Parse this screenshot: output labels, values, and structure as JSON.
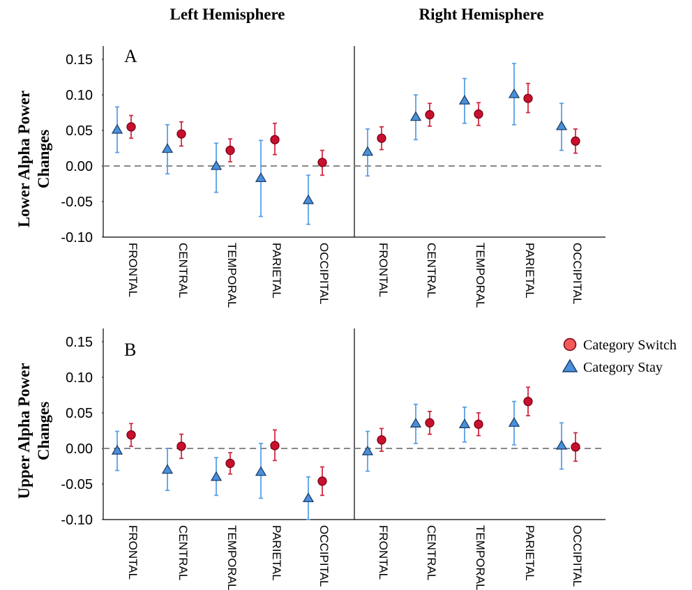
{
  "headers": {
    "left": "Left Hemisphere",
    "right": "Right Hemisphere"
  },
  "colors": {
    "switch_fill": "#c8102e",
    "switch_stroke": "#7a0014",
    "switch_error": "#d12a43",
    "stay_fill": "#4a90d9",
    "stay_stroke": "#1c3f6e",
    "stay_error": "#5aa0e6",
    "zero_line": "#888888"
  },
  "chart_data": [
    {
      "type": "scatter",
      "panel_label": "A",
      "ylabel_line1": "Lower Alpha Power",
      "ylabel_line2": "Changes",
      "ylim": [
        -0.1,
        0.15
      ],
      "yticks": [
        "0.15",
        "0.10",
        "0.05",
        "0.00",
        "-0.05",
        "-0.10"
      ],
      "ytick_values": [
        0.15,
        0.1,
        0.05,
        0.0,
        -0.05,
        -0.1
      ],
      "categories": [
        "FRONTAL",
        "CENTRAL",
        "TEMPORAL",
        "PARIETAL",
        "OCCIPITAL"
      ],
      "reference_line": 0,
      "hemispheres": [
        {
          "name": "Left Hemisphere",
          "series": [
            {
              "name": "Category Stay",
              "marker": "triangle",
              "values": [
                0.051,
                0.024,
                0.0,
                -0.017,
                -0.048
              ],
              "lower": [
                0.019,
                -0.011,
                -0.037,
                -0.071,
                -0.082
              ],
              "upper": [
                0.083,
                0.058,
                0.032,
                0.036,
                -0.013
              ]
            },
            {
              "name": "Category Switch",
              "marker": "circle",
              "values": [
                0.055,
                0.045,
                0.022,
                0.037,
                0.005
              ],
              "lower": [
                0.039,
                0.028,
                0.006,
                0.016,
                -0.013
              ],
              "upper": [
                0.071,
                0.062,
                0.038,
                0.06,
                0.022
              ]
            }
          ]
        },
        {
          "name": "Right Hemisphere",
          "series": [
            {
              "name": "Category Stay",
              "marker": "triangle",
              "values": [
                0.02,
                0.069,
                0.092,
                0.101,
                0.056
              ],
              "lower": [
                -0.014,
                0.037,
                0.06,
                0.058,
                0.022
              ],
              "upper": [
                0.052,
                0.1,
                0.123,
                0.144,
                0.088
              ]
            },
            {
              "name": "Category Switch",
              "marker": "circle",
              "values": [
                0.039,
                0.072,
                0.073,
                0.095,
                0.035
              ],
              "lower": [
                0.023,
                0.056,
                0.057,
                0.075,
                0.018
              ],
              "upper": [
                0.055,
                0.088,
                0.089,
                0.116,
                0.052
              ]
            }
          ]
        }
      ]
    },
    {
      "type": "scatter",
      "panel_label": "B",
      "ylabel_line1": "Upper Alpha Power",
      "ylabel_line2": "Changes",
      "ylim": [
        -0.1,
        0.15
      ],
      "yticks": [
        "0.15",
        "0.10",
        "0.05",
        "0.00",
        "-0.05",
        "-0.10"
      ],
      "ytick_values": [
        0.15,
        0.1,
        0.05,
        0.0,
        -0.05,
        -0.1
      ],
      "categories": [
        "FRONTAL",
        "CENTRAL",
        "TEMPORAL",
        "PARIETAL",
        "OCCIPITAL"
      ],
      "reference_line": 0,
      "hemispheres": [
        {
          "name": "Left Hemisphere",
          "series": [
            {
              "name": "Category Stay",
              "marker": "triangle",
              "values": [
                -0.003,
                -0.03,
                -0.04,
                -0.033,
                -0.07
              ],
              "lower": [
                -0.031,
                -0.059,
                -0.066,
                -0.07,
                -0.1
              ],
              "upper": [
                0.024,
                0.0,
                -0.013,
                0.007,
                -0.04
              ]
            },
            {
              "name": "Category Switch",
              "marker": "circle",
              "values": [
                0.019,
                0.003,
                -0.021,
                0.004,
                -0.046
              ],
              "lower": [
                0.003,
                -0.014,
                -0.036,
                -0.017,
                -0.066
              ],
              "upper": [
                0.035,
                0.02,
                -0.006,
                0.026,
                -0.026
              ]
            }
          ]
        },
        {
          "name": "Right Hemisphere",
          "series": [
            {
              "name": "Category Stay",
              "marker": "triangle",
              "values": [
                -0.004,
                0.035,
                0.034,
                0.036,
                0.004
              ],
              "lower": [
                -0.032,
                0.007,
                0.009,
                0.005,
                -0.029
              ],
              "upper": [
                0.024,
                0.062,
                0.058,
                0.066,
                0.036
              ]
            },
            {
              "name": "Category Switch",
              "marker": "circle",
              "values": [
                0.012,
                0.036,
                0.034,
                0.066,
                0.002
              ],
              "lower": [
                -0.004,
                0.02,
                0.018,
                0.046,
                -0.018
              ],
              "upper": [
                0.028,
                0.052,
                0.05,
                0.086,
                0.022
              ]
            }
          ]
        }
      ]
    }
  ],
  "legend": {
    "placement": "right",
    "items": [
      {
        "label": "Category Switch",
        "marker": "circle"
      },
      {
        "label": "Category Stay",
        "marker": "triangle"
      }
    ]
  }
}
